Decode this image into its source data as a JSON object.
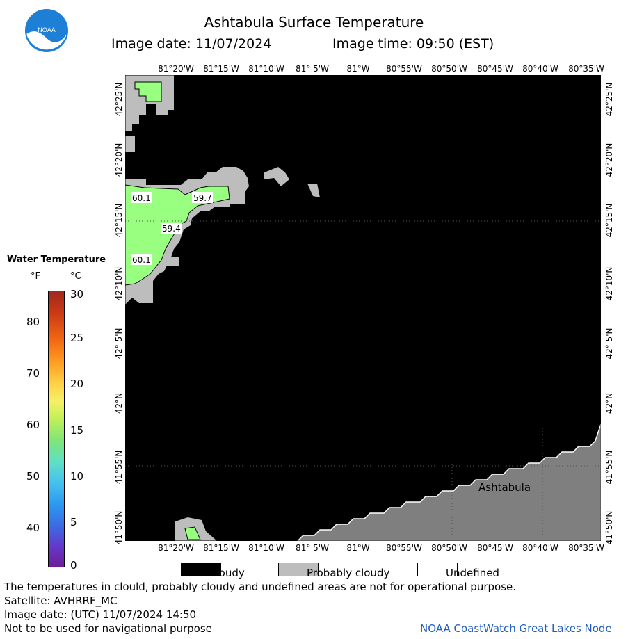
{
  "header": {
    "title": "Ashtabula Surface Temperature",
    "image_date": "Image date: 11/07/2024",
    "image_time": "Image time: 09:50 (EST)"
  },
  "logo": {
    "text": "NOAA"
  },
  "map": {
    "lon_labels": [
      "81°20'W",
      "81°15'W",
      "81°10'W",
      "81° 5'W",
      "81°W",
      "80°55'W",
      "80°50'W",
      "80°45'W",
      "80°40'W",
      "80°35'W"
    ],
    "lat_labels": [
      "42°25'N",
      "42°20'N",
      "42°15'N",
      "42°10'N",
      "42° 5'N",
      "42°N",
      "41°55'N",
      "41°50'N"
    ],
    "temperature_labels": [
      "60.1",
      "59.7",
      "59.4",
      "60.1"
    ],
    "city": "Ashtabula"
  },
  "scale": {
    "title": "Water Temperature",
    "unit_f": "°F",
    "unit_c": "°C",
    "f_ticks": [
      "80",
      "70",
      "60",
      "50",
      "40"
    ],
    "c_ticks": [
      "30",
      "25",
      "20",
      "15",
      "10",
      "5",
      "0"
    ]
  },
  "legend": {
    "cloudy": "Cloudy",
    "probably_cloudy": "Probably cloudy",
    "undefined": "Undefined"
  },
  "footer": {
    "line1": "The temperatures in clould, probably cloudy and undefined areas are not for operational purpose.",
    "line2": "Satellite: AVHRRF_MC",
    "line3": "Image date: (UTC) 11/07/2024  14:50",
    "line4": "Not to be used for navigational purpose",
    "credit": "NOAA CoastWatch Great Lakes Node"
  },
  "colors": {
    "cloud": "#000000",
    "probably_cloudy": "#bdbdbd",
    "land": "#7f7f7f",
    "water_60f": "#99ff80",
    "noaa_blue": "#1e7fd6"
  }
}
